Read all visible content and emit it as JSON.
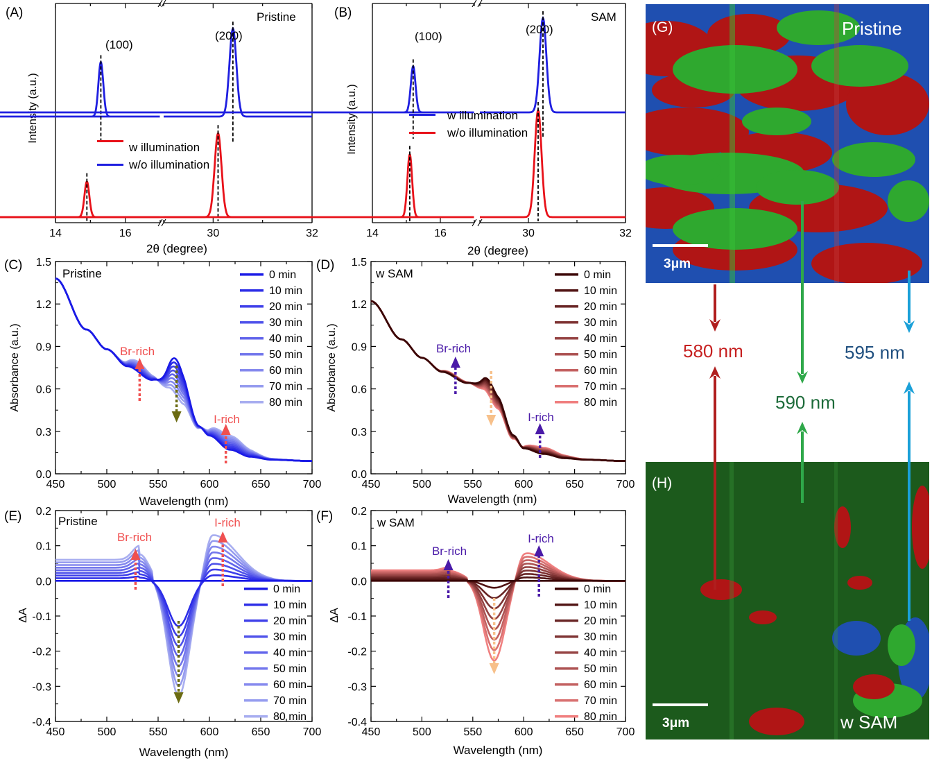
{
  "colors": {
    "blue": "#1f1fe0",
    "red": "#e8121a",
    "axis": "#000000",
    "olive": "#6b6b12",
    "salmon": "#f05050",
    "purple": "#4a1aa8",
    "peach": "#f7c08a",
    "map_red": "#b01515",
    "map_green": "#2fa82f",
    "map_blue": "#1f4fb0",
    "arrow_red": "#b01e1e",
    "arrow_green": "#2fa84a",
    "arrow_blue": "#1aa0d8"
  },
  "chart_data": [
    {
      "panel": "(A)",
      "type": "line",
      "sample_label": "Pristine",
      "xlabel": "2θ (degree)",
      "ylabel": "Intensity (a.u.)",
      "x_ticks": [
        "14",
        "16",
        "30",
        "32"
      ],
      "broken_axis": {
        "segments": [
          [
            14,
            17
          ],
          [
            29,
            32
          ]
        ]
      },
      "peak_labels": [
        "(100)",
        "(200)"
      ],
      "legend": [
        {
          "name": "w  illumination",
          "color": "red"
        },
        {
          "name": "w/o illumination",
          "color": "blue"
        }
      ],
      "series": [
        {
          "name": "upper",
          "color": "blue",
          "baseline": 0.48,
          "peaks": [
            {
              "x": 15.3,
              "h": 0.26
            },
            {
              "x": 30.4,
              "h": 0.42
            }
          ]
        },
        {
          "name": "lower",
          "color": "red",
          "baseline": 0.0,
          "peaks": [
            {
              "x": 14.9,
              "h": 0.17
            },
            {
              "x": 30.1,
              "h": 0.4
            }
          ]
        }
      ],
      "dashed_x": {
        "upper": [
          15.3,
          30.4
        ],
        "lower": [
          14.9,
          30.1
        ]
      }
    },
    {
      "panel": "(B)",
      "type": "line",
      "sample_label": "SAM",
      "xlabel": "2θ (degree)",
      "ylabel": "Intensity (a.u.)",
      "x_ticks": [
        "14",
        "16",
        "30",
        "32"
      ],
      "broken_axis": {
        "segments": [
          [
            14,
            17
          ],
          [
            29,
            32
          ]
        ]
      },
      "peak_labels": [
        "(100)",
        "(200)"
      ],
      "legend": [
        {
          "name": "w  illumination",
          "color": "blue"
        },
        {
          "name": "w/o illumination",
          "color": "red"
        }
      ],
      "series": [
        {
          "name": "upper",
          "color": "blue",
          "baseline": 0.5,
          "peaks": [
            {
              "x": 15.2,
              "h": 0.22
            },
            {
              "x": 30.3,
              "h": 0.45
            }
          ]
        },
        {
          "name": "lower",
          "color": "red",
          "baseline": 0.0,
          "peaks": [
            {
              "x": 15.1,
              "h": 0.3
            },
            {
              "x": 30.2,
              "h": 0.51
            }
          ]
        }
      ],
      "dashed_x": {
        "upper": [
          15.2,
          30.3
        ],
        "lower": [
          15.1,
          30.2
        ]
      }
    },
    {
      "panel": "(C)",
      "type": "line",
      "sample_label": "Pristine",
      "xlabel": "Wavelength (nm)",
      "ylabel": "Absorbance (a.u.)",
      "xlim": [
        450,
        700
      ],
      "ylim": [
        0,
        1.5
      ],
      "x_ticks": [
        "450",
        "500",
        "550",
        "600",
        "650",
        "700"
      ],
      "y_ticks": [
        "0.0",
        "0.3",
        "0.6",
        "0.9",
        "1.2",
        "1.5"
      ],
      "legend": [
        "0 min",
        "10 min",
        "20 min",
        "30 min",
        "40 min",
        "50 min",
        "60 min",
        "70 min",
        "80 min"
      ],
      "annotations": [
        "Br-rich",
        "I-rich"
      ],
      "times_min": [
        0,
        10,
        20,
        30,
        40,
        50,
        60,
        70,
        80
      ],
      "model": {
        "bg": [
          [
            450,
            1.38
          ],
          [
            480,
            1.02
          ],
          [
            500,
            0.88
          ],
          [
            520,
            0.76
          ],
          [
            545,
            0.66
          ],
          [
            560,
            0.6
          ],
          [
            575,
            0.5
          ],
          [
            590,
            0.33
          ],
          [
            600,
            0.27
          ],
          [
            620,
            0.17
          ],
          [
            640,
            0.12
          ],
          [
            660,
            0.1
          ],
          [
            700,
            0.09
          ]
        ],
        "exciton_center": 568,
        "exciton_h0": 0.26,
        "br_center": 532,
        "br_h": 0.07,
        "i_center": 618,
        "i_h": 0.1
      }
    },
    {
      "panel": "(D)",
      "type": "line",
      "sample_label": "w SAM",
      "xlabel": "Wavelength (nm)",
      "ylabel": "Absorbance (a.u.)",
      "xlim": [
        450,
        700
      ],
      "ylim": [
        0,
        1.5
      ],
      "x_ticks": [
        "450",
        "500",
        "550",
        "600",
        "650",
        "700"
      ],
      "y_ticks": [
        "0.0",
        "0.3",
        "0.6",
        "0.9",
        "1.2",
        "1.5"
      ],
      "legend": [
        "0 min",
        "10 min",
        "20 min",
        "30 min",
        "40 min",
        "50 min",
        "60 min",
        "70 min",
        "80 min"
      ],
      "annotations": [
        "Br-rich",
        "I-rich"
      ],
      "times_min": [
        0,
        10,
        20,
        30,
        40,
        50,
        60,
        70,
        80
      ],
      "model": {
        "bg": [
          [
            450,
            1.22
          ],
          [
            480,
            0.95
          ],
          [
            500,
            0.82
          ],
          [
            520,
            0.72
          ],
          [
            545,
            0.64
          ],
          [
            560,
            0.6
          ],
          [
            575,
            0.48
          ],
          [
            590,
            0.27
          ],
          [
            600,
            0.18
          ],
          [
            620,
            0.14
          ],
          [
            640,
            0.11
          ],
          [
            660,
            0.1
          ],
          [
            700,
            0.09
          ]
        ],
        "exciton_center": 567,
        "exciton_h0": 0.1,
        "br_center": 532,
        "br_h": 0.015,
        "i_center": 617,
        "i_h": 0.045
      }
    },
    {
      "panel": "(E)",
      "type": "line",
      "sample_label": "Pristine",
      "xlabel": "Wavelength (nm)",
      "ylabel": "ΔA",
      "xlim": [
        450,
        700
      ],
      "ylim": [
        -0.4,
        0.2
      ],
      "x_ticks": [
        "450",
        "500",
        "550",
        "600",
        "650",
        "700"
      ],
      "y_ticks": [
        "-0.4",
        "-0.3",
        "-0.2",
        "-0.1",
        "0.0",
        "0.1",
        "0.2"
      ],
      "legend": [
        "0 min",
        "10 min",
        "20 min",
        "30 min",
        "40 min",
        "50 min",
        "60 min",
        "70 min",
        "80 min"
      ],
      "annotations": [
        "Br-rich",
        "I-rich"
      ],
      "times_min": [
        0,
        10,
        20,
        30,
        40,
        50,
        60,
        70,
        80
      ],
      "model": {
        "dip_center": 570,
        "dip_depth_80": 0.335,
        "dip_depth_10": 0.13,
        "peak_center": 603,
        "peak_h_80": 0.13,
        "br_center": 532,
        "br_h_80": 0.04,
        "offset_80": 0.06
      }
    },
    {
      "panel": "(F)",
      "type": "line",
      "sample_label": "w SAM",
      "xlabel": "Wavelength (nm)",
      "ylabel": "ΔA",
      "xlim": [
        450,
        700
      ],
      "ylim": [
        -0.4,
        0.2
      ],
      "x_ticks": [
        "450",
        "500",
        "550",
        "600",
        "650",
        "700"
      ],
      "y_ticks": [
        "-0.4",
        "-0.3",
        "-0.2",
        "-0.1",
        "0.0",
        "0.1",
        "0.2"
      ],
      "legend": [
        "0 min",
        "10 min",
        "20 min",
        "30 min",
        "40 min",
        "50 min",
        "60 min",
        "70 min",
        "80 min"
      ],
      "annotations": [
        "Br-rich",
        "I-rich"
      ],
      "times_min": [
        0,
        10,
        20,
        30,
        40,
        50,
        60,
        70,
        80
      ],
      "model": {
        "dip_center": 571,
        "dip_depth_80": 0.23,
        "dip_depth_10": 0.02,
        "peak_center": 601,
        "peak_h_80": 0.08,
        "br_center": 528,
        "br_h_80": 0.01,
        "offset_80": 0.03
      }
    }
  ],
  "maps": {
    "g": {
      "panel": "(G)",
      "label": "Pristine",
      "scalebar": "3μm"
    },
    "h": {
      "panel": "(H)",
      "label": "w SAM",
      "scalebar": "3μm"
    },
    "wavelengths": [
      "580 nm",
      "590 nm",
      "595 nm"
    ]
  }
}
